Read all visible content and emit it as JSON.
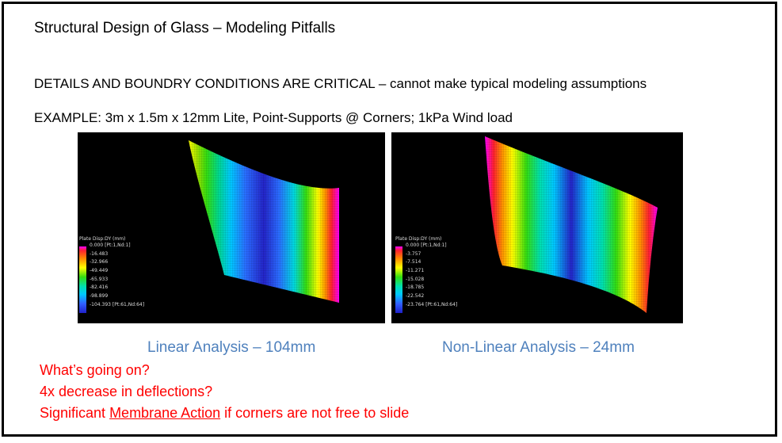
{
  "slide": {
    "title": "Structural Design of Glass – Modeling Pitfalls",
    "details": "DETAILS AND BOUNDRY CONDITIONS ARE CRITICAL – cannot make typical modeling assumptions",
    "example": "EXAMPLE:  3m x 1.5m x 12mm Lite, Point-Supports @ Corners; 1kPa Wind load"
  },
  "linear": {
    "caption": "Linear Analysis – 104mm",
    "legend_title": "Plate Disp:DY (mm)",
    "legend_values": [
      "0.000 [Pt:1,Nd:1]",
      "-16.483",
      "-32.966",
      "-49.449",
      "-65.933",
      "-82.416",
      "-98.899",
      "-104.393 [Pt:61,Nd:64]"
    ]
  },
  "nonlinear": {
    "caption": "Non-Linear Analysis – 24mm",
    "legend_title": "Plate Disp:DY (mm)",
    "legend_values": [
      "0.000 [Pt:1,Nd:1]",
      "-3.757",
      "-7.514",
      "-11.271",
      "-15.028",
      "-18.785",
      "-22.542",
      "-23.764 [Pt:61,Nd:64]"
    ]
  },
  "notes": {
    "q1": "What’s going on?",
    "q2": "4x decrease in deflections?",
    "q3_prefix": "Significant ",
    "q3_emph": "Membrane Action",
    "q3_suffix": " if corners are not free to slide"
  },
  "colors": {
    "caption": "#4f81bd",
    "notes": "#ff0000",
    "contour_stops": [
      "#ff00ff",
      "#ff2030",
      "#ff8800",
      "#ffff00",
      "#33dd11",
      "#00e0b0",
      "#00c8ff",
      "#3060ff",
      "#2020c8"
    ]
  }
}
